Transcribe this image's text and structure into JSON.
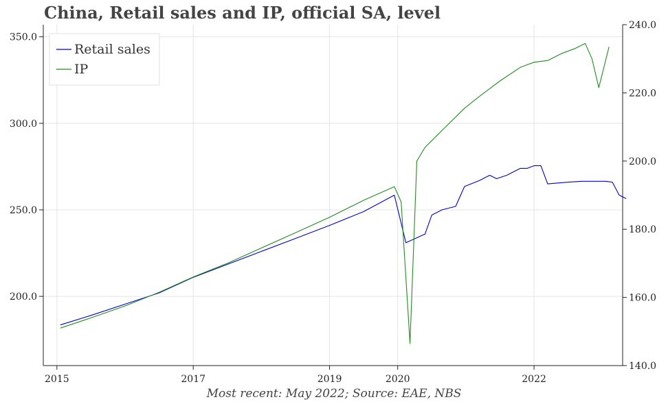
{
  "title": "China, Retail sales and IP, official SA, level",
  "footer": "Most recent: May 2022; Source: EAE, NBS",
  "chart_data": {
    "type": "line",
    "title": "China, Retail sales and IP, official SA, level",
    "x_range": [
      2014.8,
      2023.3
    ],
    "x_ticks": [
      {
        "value": 2015,
        "label": "2015"
      },
      {
        "value": 2017,
        "label": "2017"
      },
      {
        "value": 2019,
        "label": "2019"
      },
      {
        "value": 2020,
        "label": "2020"
      },
      {
        "value": 2022,
        "label": "2022"
      }
    ],
    "y_left": {
      "range": [
        160,
        357
      ],
      "ticks": [
        200,
        250,
        300,
        350
      ],
      "labels": [
        "200.0",
        "250.0",
        "300.0",
        "350.0"
      ]
    },
    "y_right": {
      "range": [
        140,
        240
      ],
      "ticks": [
        140,
        160,
        180,
        200,
        220,
        240
      ],
      "labels": [
        "140.0",
        "160.0",
        "180.0",
        "200.0",
        "220.0",
        "240.0"
      ]
    },
    "grid": true,
    "legend_position": "top-left",
    "series": [
      {
        "name": "Retail sales",
        "axis": "left",
        "color": "#0000cc",
        "points": [
          [
            2015.05,
            183.5
          ],
          [
            2015.5,
            189.0
          ],
          [
            2016.0,
            195.5
          ],
          [
            2016.5,
            202.0
          ],
          [
            2017.0,
            211.0
          ],
          [
            2017.5,
            218.5
          ],
          [
            2018.0,
            226.0
          ],
          [
            2018.5,
            233.5
          ],
          [
            2019.0,
            241.0
          ],
          [
            2019.5,
            249.0
          ],
          [
            2019.95,
            258.5
          ],
          [
            2020.12,
            231.0
          ],
          [
            2020.4,
            236.0
          ],
          [
            2020.5,
            247.0
          ],
          [
            2020.65,
            250.0
          ],
          [
            2020.85,
            252.0
          ],
          [
            2020.98,
            263.5
          ],
          [
            2021.2,
            267.0
          ],
          [
            2021.35,
            270.0
          ],
          [
            2021.45,
            268.0
          ],
          [
            2021.6,
            270.0
          ],
          [
            2021.8,
            274.0
          ],
          [
            2021.9,
            274.0
          ],
          [
            2022.0,
            275.5
          ],
          [
            2022.1,
            275.5
          ],
          [
            2022.2,
            265.0
          ],
          [
            2022.35,
            265.5
          ],
          [
            2022.5,
            266.0
          ],
          [
            2022.7,
            266.5
          ],
          [
            2022.85,
            266.5
          ],
          [
            2022.95,
            266.5
          ],
          [
            2023.05,
            266.5
          ],
          [
            2023.15,
            266.0
          ],
          [
            2023.25,
            258.5
          ],
          [
            2023.35,
            256.5
          ]
        ]
      },
      {
        "name": "IP",
        "axis": "right",
        "color": "#228b22",
        "points": [
          [
            2015.05,
            151.0
          ],
          [
            2015.5,
            154.0
          ],
          [
            2016.0,
            157.5
          ],
          [
            2016.5,
            161.5
          ],
          [
            2017.0,
            166.0
          ],
          [
            2017.5,
            170.0
          ],
          [
            2018.0,
            174.5
          ],
          [
            2018.5,
            179.0
          ],
          [
            2019.0,
            183.5
          ],
          [
            2019.5,
            188.5
          ],
          [
            2019.95,
            192.5
          ],
          [
            2020.05,
            188.0
          ],
          [
            2020.18,
            146.5
          ],
          [
            2020.28,
            200.0
          ],
          [
            2020.4,
            204.0
          ],
          [
            2020.65,
            209.0
          ],
          [
            2020.98,
            215.5
          ],
          [
            2021.2,
            219.0
          ],
          [
            2021.5,
            223.5
          ],
          [
            2021.8,
            227.5
          ],
          [
            2022.0,
            229.0
          ],
          [
            2022.2,
            229.5
          ],
          [
            2022.4,
            231.5
          ],
          [
            2022.6,
            233.0
          ],
          [
            2022.75,
            234.5
          ],
          [
            2022.85,
            230.0
          ],
          [
            2022.95,
            221.5
          ],
          [
            2023.1,
            233.5
          ]
        ]
      }
    ]
  }
}
